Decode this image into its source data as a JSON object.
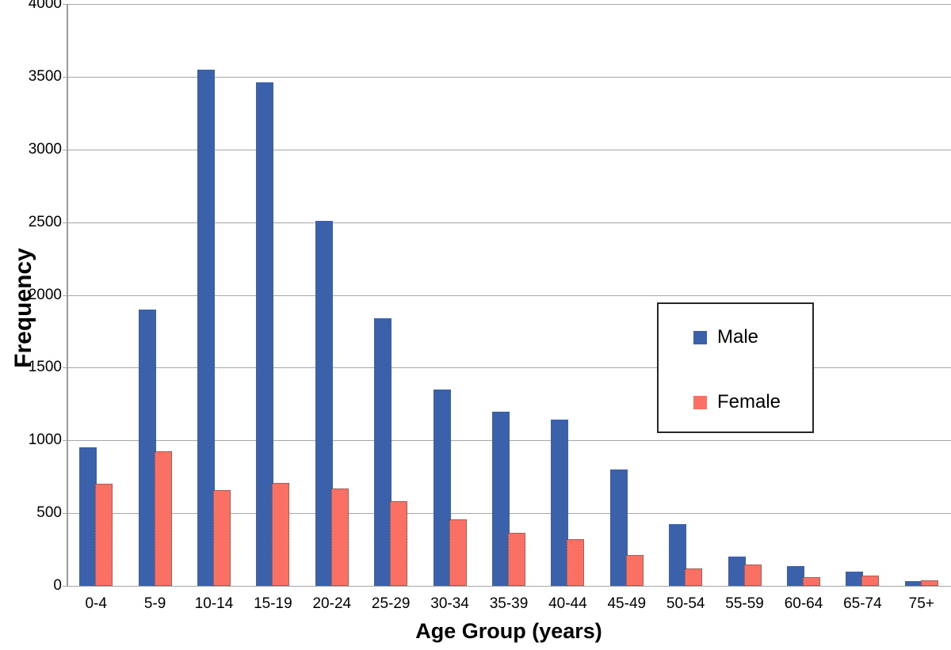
{
  "chart_data": {
    "type": "bar",
    "title": "",
    "xlabel": "Age Group (years)",
    "ylabel": "Frequency",
    "categories": [
      "0-4",
      "5-9",
      "10-14",
      "15-19",
      "20-24",
      "25-29",
      "30-34",
      "35-39",
      "40-44",
      "45-49",
      "50-54",
      "55-59",
      "60-64",
      "65-74",
      "75+"
    ],
    "series": [
      {
        "name": "Male",
        "color": "#3C61AB",
        "values": [
          950,
          1900,
          3550,
          3460,
          2510,
          1840,
          1350,
          1200,
          1145,
          800,
          425,
          200,
          135,
          100,
          35
        ]
      },
      {
        "name": "Female",
        "color": "#FA7062",
        "values": [
          700,
          925,
          660,
          710,
          670,
          585,
          455,
          365,
          320,
          210,
          120,
          145,
          60,
          70,
          40
        ]
      }
    ],
    "ylim": [
      0,
      4000
    ],
    "yticks": [
      0,
      500,
      1000,
      1500,
      2000,
      2500,
      3000,
      3500,
      4000
    ],
    "grid": true,
    "legend_position": "middle-right"
  },
  "colors": {
    "male": "#3C61AB",
    "female": "#FA7062",
    "gridline": "#A6A6A6",
    "axis": "#9A9A9A",
    "background": "#FFFFFF",
    "text": "#000000"
  }
}
